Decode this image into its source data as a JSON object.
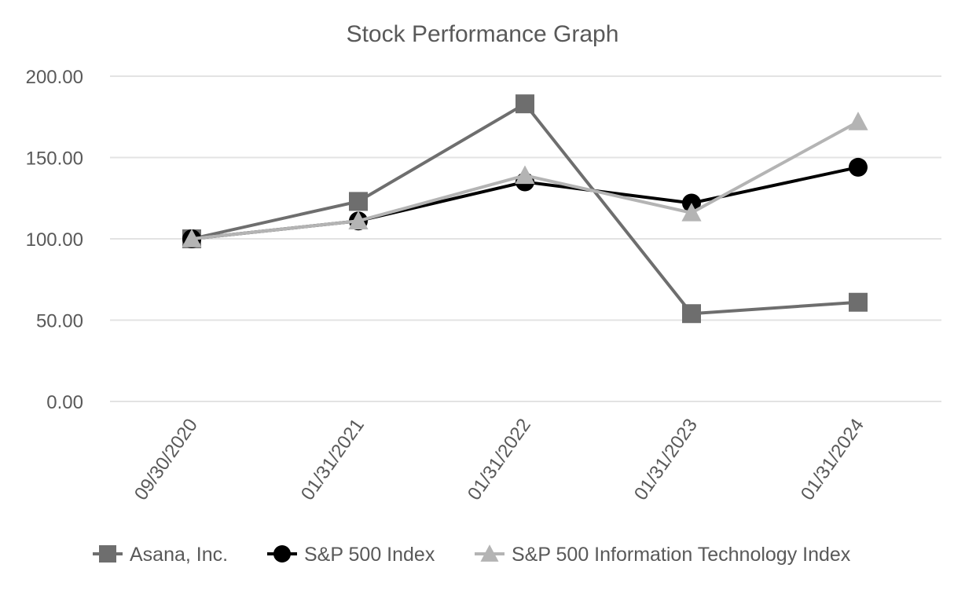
{
  "chart_data": {
    "type": "line",
    "title": "Stock Performance Graph",
    "xlabel": "",
    "ylabel": "",
    "categories": [
      "09/30/2020",
      "01/31/2021",
      "01/31/2022",
      "01/31/2023",
      "01/31/2024"
    ],
    "ylim": [
      0,
      200
    ],
    "yticks": [
      0,
      50,
      100,
      150,
      200
    ],
    "ytick_labels": [
      "0.00",
      "50.00",
      "100.00",
      "150.00",
      "200.00"
    ],
    "grid": true,
    "legend_position": "bottom",
    "series": [
      {
        "name": "Asana, Inc.",
        "marker": "square",
        "color": "#6e6e6e",
        "values": [
          100,
          123,
          183,
          54,
          61
        ]
      },
      {
        "name": "S&P 500 Index",
        "marker": "circle",
        "color": "#000000",
        "values": [
          100,
          111,
          135,
          122,
          144
        ]
      },
      {
        "name": "S&P 500 Information Technology Index",
        "marker": "triangle",
        "color": "#b4b4b4",
        "values": [
          100,
          111,
          139,
          116,
          172
        ]
      }
    ]
  }
}
